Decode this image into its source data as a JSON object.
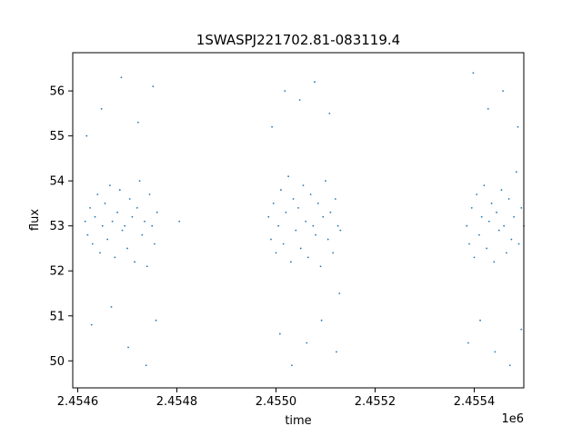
{
  "chart_data": {
    "type": "scatter",
    "title": "1SWASPJ221702.81-083119.4",
    "xlabel": "time",
    "ylabel": "flux",
    "x_offset_label": "1e6",
    "xlim": [
      2454590,
      2455500
    ],
    "ylim": [
      49.4,
      56.85
    ],
    "xticks": [
      {
        "value": 2454600,
        "label": "2.4546"
      },
      {
        "value": 2454800,
        "label": "2.4548"
      },
      {
        "value": 2455000,
        "label": "2.4550"
      },
      {
        "value": 2455200,
        "label": "2.4552"
      },
      {
        "value": 2455400,
        "label": "2.4554"
      }
    ],
    "yticks": [
      {
        "value": 50,
        "label": "50"
      },
      {
        "value": 51,
        "label": "51"
      },
      {
        "value": 52,
        "label": "52"
      },
      {
        "value": 53,
        "label": "53"
      },
      {
        "value": 54,
        "label": "54"
      },
      {
        "value": 55,
        "label": "55"
      },
      {
        "value": 56,
        "label": "56"
      }
    ],
    "grid": false,
    "marker_color": "#1f77b4",
    "season_summaries": [
      {
        "x_start": 2454610,
        "x_end": 2454760,
        "y_median": 53.0,
        "y_low": 49.8,
        "y_high": 56.4
      },
      {
        "x_start": 2454980,
        "x_end": 2455130,
        "y_median": 53.0,
        "y_low": 49.7,
        "y_high": 56.3
      },
      {
        "x_start": 2455380,
        "x_end": 2455500,
        "y_median": 53.0,
        "y_low": 49.8,
        "y_high": 56.4
      }
    ],
    "points": [
      [
        2454615,
        53.1
      ],
      [
        2454620,
        52.8
      ],
      [
        2454625,
        53.4
      ],
      [
        2454630,
        52.6
      ],
      [
        2454635,
        53.2
      ],
      [
        2454640,
        53.7
      ],
      [
        2454645,
        52.4
      ],
      [
        2454650,
        53.0
      ],
      [
        2454655,
        53.5
      ],
      [
        2454660,
        52.7
      ],
      [
        2454665,
        53.9
      ],
      [
        2454670,
        53.1
      ],
      [
        2454675,
        52.3
      ],
      [
        2454680,
        53.3
      ],
      [
        2454685,
        53.8
      ],
      [
        2454690,
        52.9
      ],
      [
        2454695,
        53.0
      ],
      [
        2454700,
        52.5
      ],
      [
        2454705,
        53.6
      ],
      [
        2454710,
        53.2
      ],
      [
        2454715,
        52.2
      ],
      [
        2454720,
        53.4
      ],
      [
        2454725,
        54.0
      ],
      [
        2454730,
        52.8
      ],
      [
        2454735,
        53.1
      ],
      [
        2454740,
        52.1
      ],
      [
        2454745,
        53.7
      ],
      [
        2454750,
        53.0
      ],
      [
        2454755,
        52.6
      ],
      [
        2454760,
        53.3
      ],
      [
        2454618,
        55.0
      ],
      [
        2454628,
        50.8
      ],
      [
        2454648,
        55.6
      ],
      [
        2454668,
        51.2
      ],
      [
        2454688,
        56.3
      ],
      [
        2454702,
        50.3
      ],
      [
        2454722,
        55.3
      ],
      [
        2454738,
        49.9
      ],
      [
        2454752,
        56.1
      ],
      [
        2454758,
        50.9
      ],
      [
        2454805,
        53.1
      ],
      [
        2454985,
        53.2
      ],
      [
        2454990,
        52.7
      ],
      [
        2454995,
        53.5
      ],
      [
        2455000,
        52.4
      ],
      [
        2455005,
        53.0
      ],
      [
        2455010,
        53.8
      ],
      [
        2455015,
        52.6
      ],
      [
        2455020,
        53.3
      ],
      [
        2455025,
        54.1
      ],
      [
        2455030,
        52.2
      ],
      [
        2455035,
        53.6
      ],
      [
        2455040,
        52.9
      ],
      [
        2455045,
        53.4
      ],
      [
        2455050,
        52.5
      ],
      [
        2455055,
        53.9
      ],
      [
        2455060,
        53.1
      ],
      [
        2455065,
        52.3
      ],
      [
        2455070,
        53.7
      ],
      [
        2455075,
        53.0
      ],
      [
        2455080,
        52.8
      ],
      [
        2455085,
        53.5
      ],
      [
        2455090,
        52.1
      ],
      [
        2455095,
        53.2
      ],
      [
        2455100,
        54.0
      ],
      [
        2455105,
        52.7
      ],
      [
        2455110,
        53.3
      ],
      [
        2455115,
        52.4
      ],
      [
        2455120,
        53.6
      ],
      [
        2455125,
        53.0
      ],
      [
        2455130,
        52.9
      ],
      [
        2454992,
        55.2
      ],
      [
        2455008,
        50.6
      ],
      [
        2455018,
        56.0
      ],
      [
        2455032,
        49.9
      ],
      [
        2455048,
        55.8
      ],
      [
        2455062,
        50.4
      ],
      [
        2455078,
        56.2
      ],
      [
        2455092,
        50.9
      ],
      [
        2455108,
        55.5
      ],
      [
        2455122,
        50.2
      ],
      [
        2455128,
        51.5
      ],
      [
        2455385,
        53.0
      ],
      [
        2455390,
        52.6
      ],
      [
        2455395,
        53.4
      ],
      [
        2455400,
        52.3
      ],
      [
        2455405,
        53.7
      ],
      [
        2455410,
        52.8
      ],
      [
        2455415,
        53.2
      ],
      [
        2455420,
        53.9
      ],
      [
        2455425,
        52.5
      ],
      [
        2455430,
        53.1
      ],
      [
        2455435,
        53.5
      ],
      [
        2455440,
        52.2
      ],
      [
        2455445,
        53.3
      ],
      [
        2455450,
        52.9
      ],
      [
        2455455,
        53.8
      ],
      [
        2455460,
        53.0
      ],
      [
        2455465,
        52.4
      ],
      [
        2455470,
        53.6
      ],
      [
        2455475,
        52.7
      ],
      [
        2455480,
        53.2
      ],
      [
        2455485,
        54.2
      ],
      [
        2455490,
        52.6
      ],
      [
        2455495,
        53.4
      ],
      [
        2455500,
        53.0
      ],
      [
        2455388,
        50.4
      ],
      [
        2455398,
        56.4
      ],
      [
        2455412,
        50.9
      ],
      [
        2455428,
        55.6
      ],
      [
        2455442,
        50.2
      ],
      [
        2455458,
        56.0
      ],
      [
        2455472,
        49.9
      ],
      [
        2455488,
        55.2
      ],
      [
        2455495,
        50.7
      ]
    ]
  }
}
